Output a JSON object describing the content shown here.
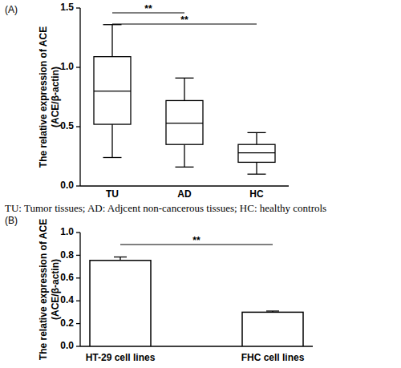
{
  "chart_data": [
    {
      "type": "box",
      "title": "(A)",
      "categories": [
        "TU",
        "AD",
        "HC"
      ],
      "whisker_low": [
        0.24,
        0.16,
        0.1
      ],
      "q1": [
        0.52,
        0.35,
        0.2
      ],
      "median": [
        0.8,
        0.53,
        0.28
      ],
      "q3": [
        1.09,
        0.72,
        0.35
      ],
      "whisker_high": [
        1.36,
        0.91,
        0.45
      ],
      "color": "#000000",
      "ylim": [
        0,
        1.5
      ],
      "yticks": [
        {
          "value": 0,
          "label": "0.0"
        },
        0.5,
        {
          "value": 1,
          "label": "1.0"
        },
        1.5
      ],
      "ylabel": [
        "The relative expression of ACE",
        "(ACE/β-actin)"
      ],
      "annotations": [
        {
          "text": "**",
          "categories": [
            "TU",
            "AD"
          ]
        },
        {
          "text": "**",
          "categories": [
            "TU",
            "HC"
          ]
        }
      ],
      "caption": "TU: Tumor tissues; AD: Adjcent non-cancerous tissues; HC: healthy controls"
    },
    {
      "type": "bar",
      "title": "(B)",
      "categories": [
        "HT-29 cell lines",
        "FHC cell lines"
      ],
      "values": [
        0.755,
        0.3
      ],
      "errors": [
        0.03,
        0.01
      ],
      "color": "#ffffff",
      "ylim": [
        0,
        1.0
      ],
      "yticks": [
        {
          "value": 0,
          "label": "0.0"
        },
        0.2,
        0.4,
        0.6,
        0.8,
        {
          "value": 1,
          "label": "1.0"
        }
      ],
      "ylabel": [
        "The relative expression of ACE",
        "(ACE/β-actin)"
      ],
      "annotations": [
        {
          "text": "**",
          "categories": [
            "HT-29 cell lines",
            "FHC cell lines"
          ]
        }
      ]
    }
  ]
}
